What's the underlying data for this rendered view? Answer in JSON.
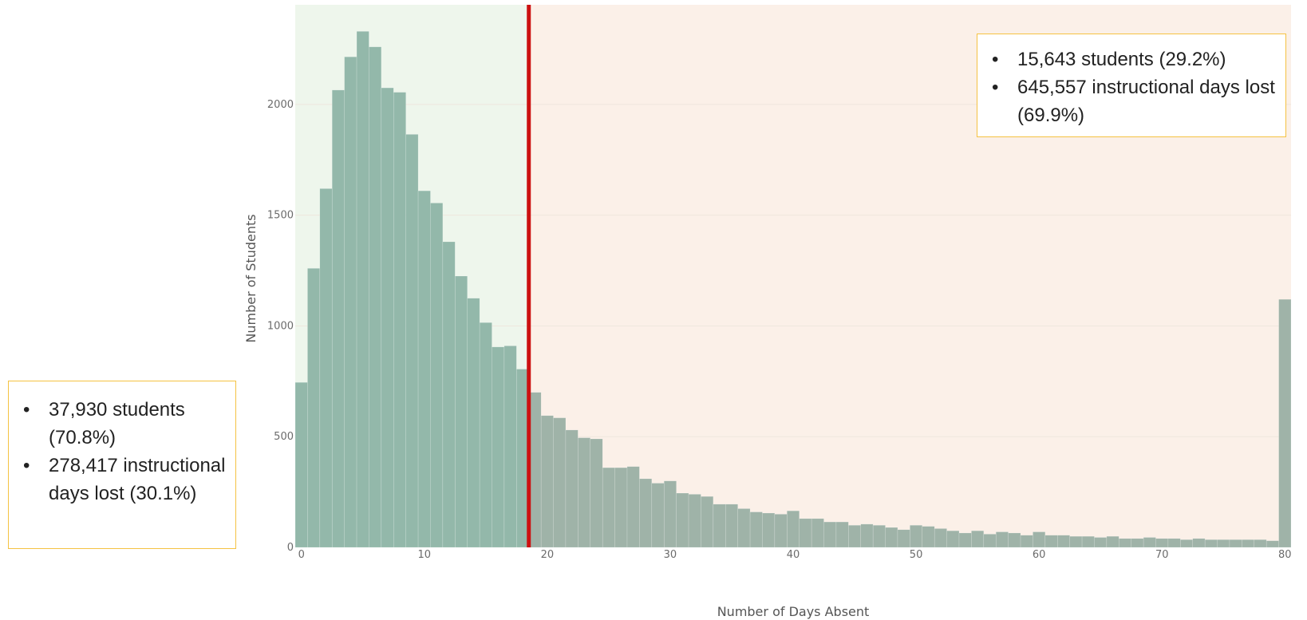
{
  "chart_data": {
    "type": "bar",
    "title": "",
    "xlabel": "Number of Days Absent",
    "ylabel": "Number of Students",
    "xlim": [
      -0.5,
      80.5
    ],
    "ylim": [
      0,
      2450
    ],
    "xticks": [
      0,
      10,
      20,
      30,
      40,
      50,
      60,
      70,
      80
    ],
    "yticks": [
      0,
      500,
      1000,
      1500,
      2000
    ],
    "threshold": 18,
    "colors": {
      "bar_below": "#93b8aa",
      "bar_above": "#9fb3a8",
      "region_below": "#eef6ec",
      "region_above": "#fbf0e8",
      "threshold_line": "#cc1111"
    },
    "x": [
      0,
      1,
      2,
      3,
      4,
      5,
      6,
      7,
      8,
      9,
      10,
      11,
      12,
      13,
      14,
      15,
      16,
      17,
      18,
      19,
      20,
      21,
      22,
      23,
      24,
      25,
      26,
      27,
      28,
      29,
      30,
      31,
      32,
      33,
      34,
      35,
      36,
      37,
      38,
      39,
      40,
      41,
      42,
      43,
      44,
      45,
      46,
      47,
      48,
      49,
      50,
      51,
      52,
      53,
      54,
      55,
      56,
      57,
      58,
      59,
      60,
      61,
      62,
      63,
      64,
      65,
      66,
      67,
      68,
      69,
      70,
      71,
      72,
      73,
      74,
      75,
      76,
      77,
      78,
      79,
      80
    ],
    "values": [
      745,
      1260,
      1620,
      2065,
      2215,
      2330,
      2260,
      2075,
      2055,
      1865,
      1610,
      1555,
      1380,
      1225,
      1125,
      1015,
      905,
      910,
      805,
      700,
      595,
      585,
      530,
      495,
      490,
      360,
      360,
      365,
      310,
      290,
      300,
      245,
      240,
      230,
      195,
      195,
      175,
      160,
      155,
      150,
      165,
      130,
      130,
      115,
      115,
      100,
      105,
      100,
      90,
      80,
      100,
      95,
      85,
      75,
      65,
      75,
      60,
      70,
      65,
      55,
      70,
      55,
      55,
      50,
      50,
      45,
      50,
      40,
      40,
      45,
      40,
      40,
      35,
      40,
      35,
      35,
      35,
      35,
      35,
      30,
      1120
    ]
  },
  "annotations": {
    "right": [
      "15,643 students (29.2%)",
      "645,557 instructional days lost (69.9%)"
    ],
    "left": [
      "37,930 students (70.8%)",
      "278,417 instructional days lost (30.1%)"
    ]
  }
}
